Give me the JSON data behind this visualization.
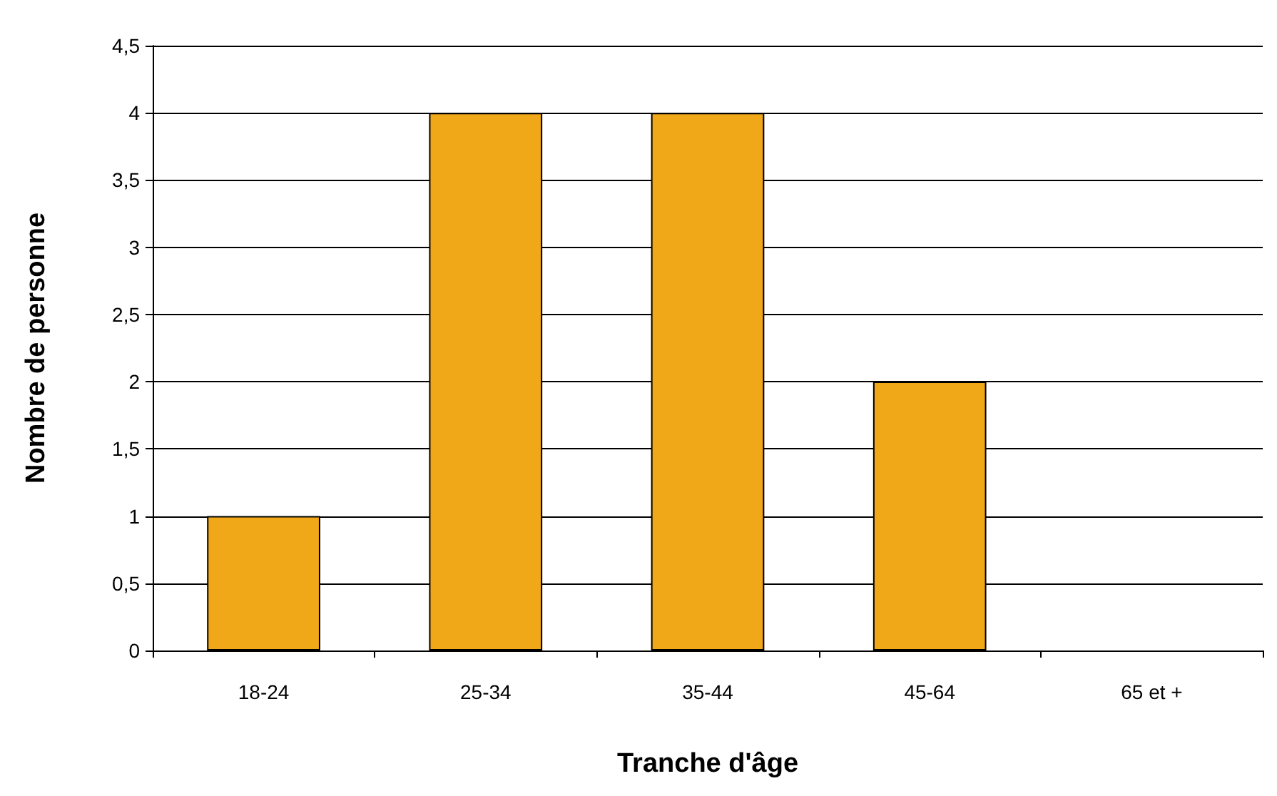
{
  "chart_data": {
    "type": "bar",
    "xlabel": "Tranche d'âge",
    "ylabel": "Nombre de personne",
    "categories": [
      "18-24",
      "25-34",
      "35-44",
      "45-64",
      "65 et +"
    ],
    "values": [
      1,
      4,
      4,
      2,
      0
    ],
    "color": "#f0a818",
    "ylim": [
      0,
      4.5
    ],
    "yticks": [
      0,
      {
        "value": 0.5,
        "label": "0,5"
      },
      1,
      {
        "value": 1.5,
        "label": "1,5"
      },
      2,
      {
        "value": 2.5,
        "label": "2,5"
      },
      3,
      {
        "value": 3.5,
        "label": "3,5"
      },
      4,
      {
        "value": 4.5,
        "label": "4,5"
      }
    ],
    "grid": "y"
  }
}
